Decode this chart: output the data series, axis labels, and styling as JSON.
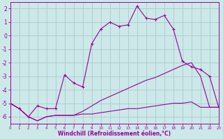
{
  "xlabel": "Windchill (Refroidissement éolien,°C)",
  "background_color": "#cce8e8",
  "grid_color": "#aacccc",
  "line_color": "#990099",
  "xlim": [
    0,
    23
  ],
  "ylim": [
    -6.5,
    2.5
  ],
  "yticks": [
    2,
    1,
    0,
    -1,
    -2,
    -3,
    -4,
    -5,
    -6
  ],
  "xticks": [
    0,
    1,
    2,
    3,
    4,
    5,
    6,
    7,
    8,
    9,
    10,
    11,
    12,
    13,
    14,
    15,
    16,
    17,
    18,
    19,
    20,
    21,
    22,
    23
  ],
  "series": [
    {
      "x": [
        0,
        1,
        2,
        3,
        4,
        5,
        6,
        7,
        8,
        9,
        10,
        11,
        12,
        13,
        14,
        15,
        16,
        17,
        18,
        19,
        20,
        21,
        22,
        23
      ],
      "y": [
        -5.0,
        -5.4,
        -6.0,
        -6.3,
        -6.0,
        -5.9,
        -5.9,
        -5.9,
        -5.8,
        -5.8,
        -5.7,
        -5.6,
        -5.5,
        -5.4,
        -5.4,
        -5.3,
        -5.2,
        -5.1,
        -5.0,
        -5.0,
        -4.9,
        -5.3,
        -5.3,
        -5.3
      ],
      "marker": false
    },
    {
      "x": [
        0,
        1,
        2,
        3,
        4,
        5,
        6,
        7,
        8,
        9,
        10,
        11,
        12,
        13,
        14,
        15,
        16,
        17,
        18,
        19,
        20,
        21,
        22,
        23
      ],
      "y": [
        -5.0,
        -5.4,
        -6.0,
        -6.3,
        -6.0,
        -5.9,
        -5.9,
        -5.9,
        -5.6,
        -5.2,
        -4.8,
        -4.5,
        -4.2,
        -3.9,
        -3.6,
        -3.3,
        -3.1,
        -2.8,
        -2.5,
        -2.2,
        -2.0,
        -3.0,
        -5.3,
        -5.3
      ],
      "marker": false
    },
    {
      "x": [
        0,
        1,
        2,
        3,
        4,
        5,
        6,
        7,
        8,
        9,
        10,
        11,
        12,
        13,
        14,
        15,
        16,
        17,
        18,
        19,
        20,
        21,
        22,
        23
      ],
      "y": [
        -5.0,
        -5.4,
        -6.0,
        -5.2,
        -5.4,
        -5.4,
        -2.9,
        -3.5,
        -3.8,
        -0.6,
        0.5,
        1.0,
        0.7,
        0.8,
        2.2,
        1.3,
        1.2,
        1.5,
        0.5,
        -1.9,
        -2.3,
        -2.5,
        -3.0,
        -5.3
      ],
      "marker": true
    }
  ]
}
